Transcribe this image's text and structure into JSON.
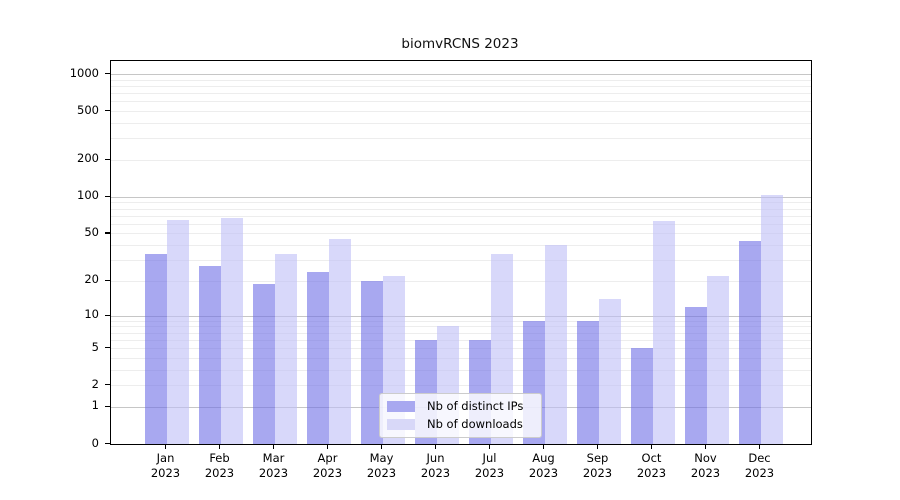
{
  "chart_data": {
    "type": "bar",
    "title": "biomvRCNS 2023",
    "categories": [
      "Jan 2023",
      "Feb 2023",
      "Mar 2023",
      "Apr 2023",
      "May 2023",
      "Jun 2023",
      "Jul 2023",
      "Aug 2023",
      "Sep 2023",
      "Oct 2023",
      "Nov 2023",
      "Dec 2023"
    ],
    "series": [
      {
        "name": "Nb of distinct IPs",
        "color": "#a8a8f0",
        "fill": "rgba(110,110,230,0.6)",
        "values": [
          34,
          27,
          19,
          24,
          20,
          6,
          6,
          9,
          9,
          5,
          12,
          43
        ]
      },
      {
        "name": "Nb of downloads",
        "color": "#d8d8f8",
        "fill": "rgba(190,190,247,0.6)",
        "values": [
          64,
          67,
          34,
          45,
          22,
          8,
          34,
          40,
          14,
          63,
          22,
          104
        ]
      }
    ],
    "yscale": "log10(x+1)",
    "yticks": [
      0,
      1,
      2,
      5,
      10,
      20,
      50,
      100,
      200,
      500,
      1000
    ],
    "ylim": [
      0,
      1275
    ],
    "xlabel": "",
    "ylabel": "",
    "grid": true,
    "grid_major_color": "#c6c6c6",
    "grid_minor_color": "#ededed",
    "legend_position": "inside-bottom-center"
  }
}
